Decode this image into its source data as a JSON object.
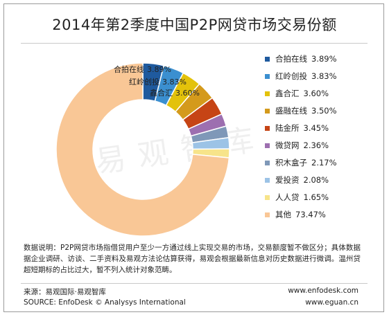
{
  "title": "2014年第2季度中国P2P网贷市场交易份额",
  "watermark": "易观智库",
  "chart_data": {
    "type": "pie",
    "title": "2014年第2季度中国P2P网贷市场交易份额",
    "legend_position": "right",
    "slices": [
      {
        "label": "合拍在线",
        "value": 3.89,
        "display": "3.89%",
        "color": "#1f5a9e"
      },
      {
        "label": "红岭创投",
        "value": 3.83,
        "display": "3.83%",
        "color": "#3b8fd0"
      },
      {
        "label": "鑫合汇",
        "value": 3.6,
        "display": "3.60%",
        "color": "#e3c20b"
      },
      {
        "label": "盛融在线",
        "value": 3.5,
        "display": "3.50%",
        "color": "#d49a1c"
      },
      {
        "label": "陆金所",
        "value": 3.45,
        "display": "3.45%",
        "color": "#c64415"
      },
      {
        "label": "微贷网",
        "value": 2.36,
        "display": "2.36%",
        "color": "#9d6fb0"
      },
      {
        "label": "积木盒子",
        "value": 2.17,
        "display": "2.17%",
        "color": "#7f98b8"
      },
      {
        "label": "爱投资",
        "value": 2.08,
        "display": "2.08%",
        "color": "#9cc3e6"
      },
      {
        "label": "人人贷",
        "value": 1.65,
        "display": "1.65%",
        "color": "#f7e48a"
      },
      {
        "label": "其他",
        "value": 73.47,
        "display": "73.47%",
        "color": "#f9c796"
      }
    ],
    "inner_labels": [
      {
        "name": "合拍在线",
        "value": "3.89%"
      },
      {
        "name": "红岭创投",
        "value": "3.83%"
      },
      {
        "name": "鑫合汇",
        "value": "3.60%"
      }
    ]
  },
  "footnote": "数据说明：P2P网贷市场指借贷用户至少一方通过线上实现交易的市场，交易额度暂不做区分；具体数据据企业调研、访谈、二手资料及易观方法论估算获得，易观会根据最新信息对历史数据进行微调。温州贷超短期标的占比过大，暂不列入统计对象范畴。",
  "source_cn": "来源：易观国际·易观智库",
  "source_en": "SOURCE: EnfoDesk © Analysys International",
  "site1": "www.enfodesk.com",
  "site2": "www.eguan.cn"
}
